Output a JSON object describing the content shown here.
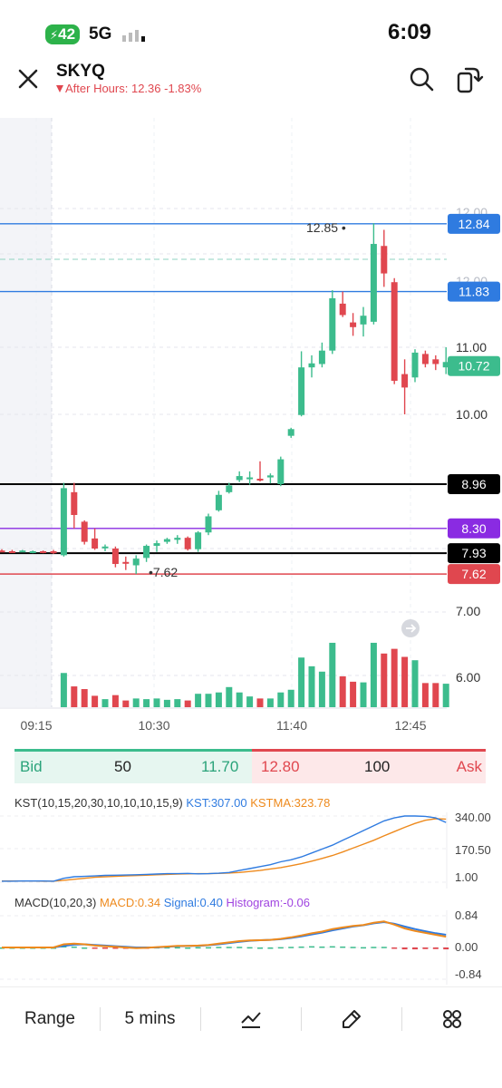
{
  "status_bar": {
    "battery_text": "42",
    "network": "5G",
    "time": "6:09"
  },
  "header": {
    "symbol": "SKYQ",
    "after_hours_text": "After Hours: 12.36 -1.83%",
    "icons": [
      "close-icon",
      "search-icon",
      "rotate-screen-icon"
    ]
  },
  "chart_data": {
    "type": "candlestick",
    "y_axis_ticks": [
      "12.00",
      "12.00",
      "11.00",
      "10.00",
      "7.00",
      "6.00"
    ],
    "y_axis_tick_values": [
      12,
      12,
      11,
      10,
      7,
      6
    ],
    "x_axis_ticks": [
      "09:15",
      "10:30",
      "11:40",
      "12:45"
    ],
    "high_marker": "12.85",
    "low_marker": "7.62",
    "price_lines": [
      {
        "label": "12.84",
        "value": 12.84,
        "color": "#2f7be0"
      },
      {
        "label": "11.83",
        "value": 11.83,
        "color": "#2f7be0"
      },
      {
        "label": "10.72",
        "value": 10.72,
        "color": "#3cbc8d"
      },
      {
        "label": "8.96",
        "value": 8.96,
        "color": "#000000"
      },
      {
        "label": "8.30",
        "value": 8.3,
        "color": "#8a2be2"
      },
      {
        "label": "7.93",
        "value": 7.93,
        "color": "#000000"
      },
      {
        "label": "7.62",
        "value": 7.62,
        "color": "#e0474f"
      }
    ],
    "candles": [
      {
        "o": 7.97,
        "h": 7.99,
        "l": 7.95,
        "c": 7.96
      },
      {
        "o": 7.96,
        "h": 7.98,
        "l": 7.94,
        "c": 7.95
      },
      {
        "o": 7.96,
        "h": 7.98,
        "l": 7.95,
        "c": 7.97
      },
      {
        "o": 7.95,
        "h": 7.97,
        "l": 7.93,
        "c": 7.96
      },
      {
        "o": 7.96,
        "h": 7.97,
        "l": 7.93,
        "c": 7.94
      },
      {
        "o": 7.96,
        "h": 7.98,
        "l": 7.92,
        "c": 7.93
      },
      {
        "o": 7.9,
        "h": 8.98,
        "l": 7.88,
        "c": 8.9
      },
      {
        "o": 8.84,
        "h": 8.98,
        "l": 8.3,
        "c": 8.5
      },
      {
        "o": 8.4,
        "h": 8.42,
        "l": 8.06,
        "c": 8.1
      },
      {
        "o": 8.15,
        "h": 8.3,
        "l": 7.98,
        "c": 8.0
      },
      {
        "o": 8.01,
        "h": 8.06,
        "l": 7.96,
        "c": 8.03
      },
      {
        "o": 8.0,
        "h": 8.03,
        "l": 7.72,
        "c": 7.77
      },
      {
        "o": 7.8,
        "h": 7.88,
        "l": 7.68,
        "c": 7.78
      },
      {
        "o": 7.75,
        "h": 7.9,
        "l": 7.62,
        "c": 7.85
      },
      {
        "o": 7.86,
        "h": 8.06,
        "l": 7.8,
        "c": 8.04
      },
      {
        "o": 8.04,
        "h": 8.12,
        "l": 7.95,
        "c": 8.08
      },
      {
        "o": 8.1,
        "h": 8.16,
        "l": 8.07,
        "c": 8.14
      },
      {
        "o": 8.13,
        "h": 8.2,
        "l": 8.07,
        "c": 8.16
      },
      {
        "o": 8.16,
        "h": 8.18,
        "l": 7.97,
        "c": 7.99
      },
      {
        "o": 7.99,
        "h": 8.26,
        "l": 7.95,
        "c": 8.24
      },
      {
        "o": 8.24,
        "h": 8.52,
        "l": 8.2,
        "c": 8.48
      },
      {
        "o": 8.57,
        "h": 8.86,
        "l": 8.55,
        "c": 8.8
      },
      {
        "o": 8.84,
        "h": 8.98,
        "l": 8.82,
        "c": 8.94
      },
      {
        "o": 9.02,
        "h": 9.15,
        "l": 8.99,
        "c": 9.08
      },
      {
        "o": 9.05,
        "h": 9.15,
        "l": 8.95,
        "c": 9.06
      },
      {
        "o": 9.04,
        "h": 9.3,
        "l": 9.0,
        "c": 9.03
      },
      {
        "o": 9.06,
        "h": 9.12,
        "l": 8.97,
        "c": 9.09
      },
      {
        "o": 8.96,
        "h": 9.37,
        "l": 8.93,
        "c": 9.33
      },
      {
        "o": 9.68,
        "h": 9.8,
        "l": 9.65,
        "c": 9.78
      },
      {
        "o": 9.99,
        "h": 10.94,
        "l": 9.97,
        "c": 10.7
      },
      {
        "o": 10.7,
        "h": 10.88,
        "l": 10.55,
        "c": 10.76
      },
      {
        "o": 10.75,
        "h": 11.07,
        "l": 10.7,
        "c": 10.95
      },
      {
        "o": 10.95,
        "h": 11.85,
        "l": 10.9,
        "c": 11.73
      },
      {
        "o": 11.65,
        "h": 11.83,
        "l": 11.45,
        "c": 11.48
      },
      {
        "o": 11.37,
        "h": 11.51,
        "l": 11.17,
        "c": 11.3
      },
      {
        "o": 11.34,
        "h": 11.6,
        "l": 11.16,
        "c": 11.47
      },
      {
        "o": 11.38,
        "h": 12.85,
        "l": 11.34,
        "c": 12.54
      },
      {
        "o": 12.51,
        "h": 12.75,
        "l": 11.9,
        "c": 12.1
      },
      {
        "o": 11.97,
        "h": 12.03,
        "l": 10.45,
        "c": 10.5
      },
      {
        "o": 10.6,
        "h": 10.82,
        "l": 10.0,
        "c": 10.4
      },
      {
        "o": 10.55,
        "h": 10.97,
        "l": 10.48,
        "c": 10.92
      },
      {
        "o": 10.9,
        "h": 10.95,
        "l": 10.7,
        "c": 10.75
      },
      {
        "o": 10.82,
        "h": 10.88,
        "l": 10.66,
        "c": 10.75
      },
      {
        "o": 10.7,
        "h": 11.0,
        "l": 10.6,
        "c": 10.78
      }
    ],
    "volumes": [
      0,
      0,
      0,
      0,
      0,
      0,
      5.1,
      3.1,
      2.7,
      1.7,
      1.2,
      1.8,
      1.0,
      1.3,
      1.2,
      1.3,
      1.1,
      1.2,
      1.0,
      2.0,
      2.0,
      2.2,
      3.0,
      2.2,
      1.6,
      1.3,
      1.3,
      2.2,
      2.6,
      7.4,
      6.1,
      5.3,
      9.6,
      4.6,
      3.8,
      3.7,
      9.6,
      8.0,
      8.7,
      7.5,
      7.0,
      3.6,
      3.6,
      3.5
    ]
  },
  "bid_ask": {
    "bid_label": "Bid",
    "bid_size": "50",
    "bid_price": "11.70",
    "ask_price": "12.80",
    "ask_size": "100",
    "ask_label": "Ask"
  },
  "kst": {
    "title": "KST(10,15,20,30,10,10,10,15,9)",
    "kst_value": "KST:307.00",
    "kstma_value": "KSTMA:323.78",
    "ticks": [
      "340.00",
      "170.50",
      "1.00"
    ],
    "kst_line": [
      5,
      5,
      6,
      6,
      6,
      5,
      20,
      28,
      30,
      32,
      35,
      36,
      37,
      38,
      40,
      42,
      44,
      44,
      45,
      43,
      44,
      46,
      50,
      60,
      70,
      80,
      90,
      105,
      115,
      130,
      150,
      170,
      190,
      215,
      240,
      265,
      290,
      315,
      330,
      340,
      340,
      338,
      330,
      307
    ],
    "kstma_line": [
      6,
      6,
      6,
      6,
      5,
      5,
      10,
      15,
      20,
      25,
      28,
      30,
      32,
      34,
      36,
      38,
      40,
      42,
      43,
      44,
      44,
      45,
      47,
      50,
      55,
      60,
      68,
      75,
      85,
      95,
      108,
      122,
      137,
      155,
      175,
      195,
      215,
      238,
      260,
      282,
      302,
      318,
      326,
      324
    ]
  },
  "macd": {
    "title": "MACD(10,20,3)",
    "macd_value": "MACD:0.34",
    "signal_value": "Signal:0.40",
    "histogram_value": "Histogram:-0.06",
    "ticks": [
      "0.84",
      "0.00",
      "-0.84"
    ],
    "macd_line": [
      0,
      0,
      0,
      0,
      0,
      0,
      0.1,
      0.12,
      0.1,
      0.06,
      0.04,
      0.02,
      0,
      -0.02,
      -0.01,
      0.01,
      0.03,
      0.05,
      0.05,
      0.06,
      0.08,
      0.12,
      0.16,
      0.2,
      0.22,
      0.23,
      0.24,
      0.27,
      0.32,
      0.38,
      0.45,
      0.5,
      0.58,
      0.63,
      0.68,
      0.71,
      0.78,
      0.82,
      0.72,
      0.6,
      0.52,
      0.46,
      0.4,
      0.34
    ],
    "signal_line": [
      0,
      0,
      0,
      0,
      0,
      0,
      0.05,
      0.09,
      0.1,
      0.08,
      0.06,
      0.04,
      0.02,
      0,
      0,
      0,
      0.02,
      0.04,
      0.05,
      0.05,
      0.07,
      0.1,
      0.14,
      0.18,
      0.21,
      0.23,
      0.24,
      0.26,
      0.3,
      0.35,
      0.41,
      0.47,
      0.54,
      0.6,
      0.66,
      0.7,
      0.76,
      0.8,
      0.75,
      0.66,
      0.58,
      0.51,
      0.45,
      0.4
    ]
  },
  "bottom_bar": {
    "range_label": "Range",
    "interval_label": "5 mins",
    "icons": [
      "indicator-chart-icon",
      "draw-pen-icon",
      "grid-apps-icon"
    ]
  },
  "colors": {
    "up": "#3cbc8d",
    "down": "#e0474f",
    "blue": "#2f7be0",
    "orange": "#ee8a1d",
    "purple": "#a044e0"
  }
}
